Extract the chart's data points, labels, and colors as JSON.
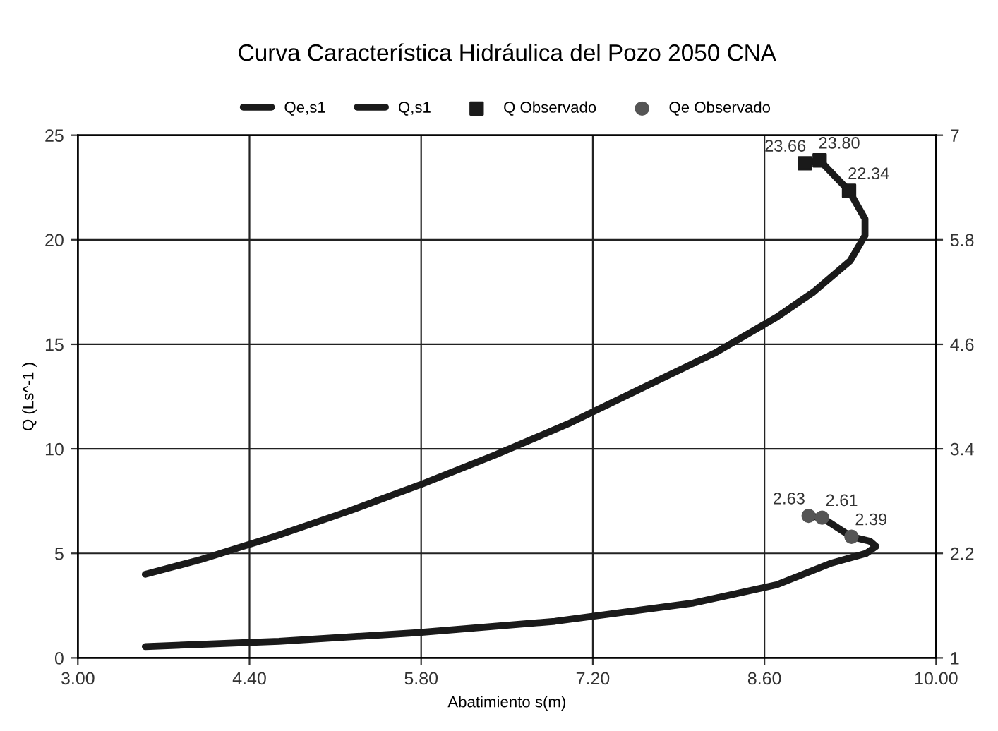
{
  "chart_data": {
    "type": "line",
    "title": "Curva Característica Hidráulica del Pozo 2050 CNA",
    "xlabel": "Abatimiento s(m)",
    "ylabel": "Q (Ls^-1 )",
    "xlim": [
      3.0,
      10.0
    ],
    "xticks": [
      {
        "value": 3.0,
        "label": "3.00"
      },
      {
        "value": 4.4,
        "label": "4.40"
      },
      {
        "value": 5.8,
        "label": "5.80"
      },
      {
        "value": 7.2,
        "label": "7.20"
      },
      {
        "value": 8.6,
        "label": "8.60"
      },
      {
        "value": 10.0,
        "label": "10.00"
      }
    ],
    "ylim": [
      0,
      25
    ],
    "yticks": [
      0,
      5,
      10,
      15,
      20,
      25
    ],
    "y2lim": [
      1,
      7
    ],
    "y2ticks": [
      1,
      2.2,
      3.4,
      4.6,
      5.8,
      7
    ],
    "grid": true,
    "legend": "top",
    "series": [
      {
        "name": "Qe,s1",
        "axis": "y2",
        "color": "#1a1a1a",
        "x": [
          3.55,
          4.64,
          5.77,
          6.89,
          8.02,
          8.7,
          9.15,
          9.43,
          9.51,
          9.46,
          9.31,
          9.07,
          8.96
        ],
        "values": [
          1.13,
          1.19,
          1.29,
          1.42,
          1.63,
          1.84,
          2.09,
          2.2,
          2.28,
          2.34,
          2.39,
          2.61,
          2.63
        ]
      },
      {
        "name": "Q,s1",
        "axis": "y",
        "color": "#1a1a1a",
        "x": [
          3.55,
          4.0,
          4.6,
          5.2,
          5.8,
          6.4,
          7.0,
          7.6,
          8.2,
          8.7,
          9.0,
          9.3,
          9.42,
          9.42,
          9.29,
          9.05,
          8.93
        ],
        "values": [
          4.0,
          4.7,
          5.8,
          7.0,
          8.3,
          9.7,
          11.2,
          12.9,
          14.6,
          16.3,
          17.5,
          19.0,
          20.2,
          21.0,
          22.34,
          23.8,
          23.66
        ]
      },
      {
        "name": "Q Observado",
        "type": "scatter",
        "axis": "y",
        "marker": "square",
        "color": "#1a1a1a",
        "x": [
          8.93,
          9.05,
          9.29
        ],
        "values": [
          23.66,
          23.8,
          22.34
        ],
        "value_labels": [
          "23.66",
          "23.80",
          "22.34"
        ]
      },
      {
        "name": "Qe Observado",
        "type": "scatter",
        "axis": "y2",
        "marker": "circle",
        "color": "#555555",
        "x": [
          8.96,
          9.07,
          9.31
        ],
        "values": [
          2.63,
          2.61,
          2.39
        ],
        "data_labels": true
      }
    ]
  }
}
